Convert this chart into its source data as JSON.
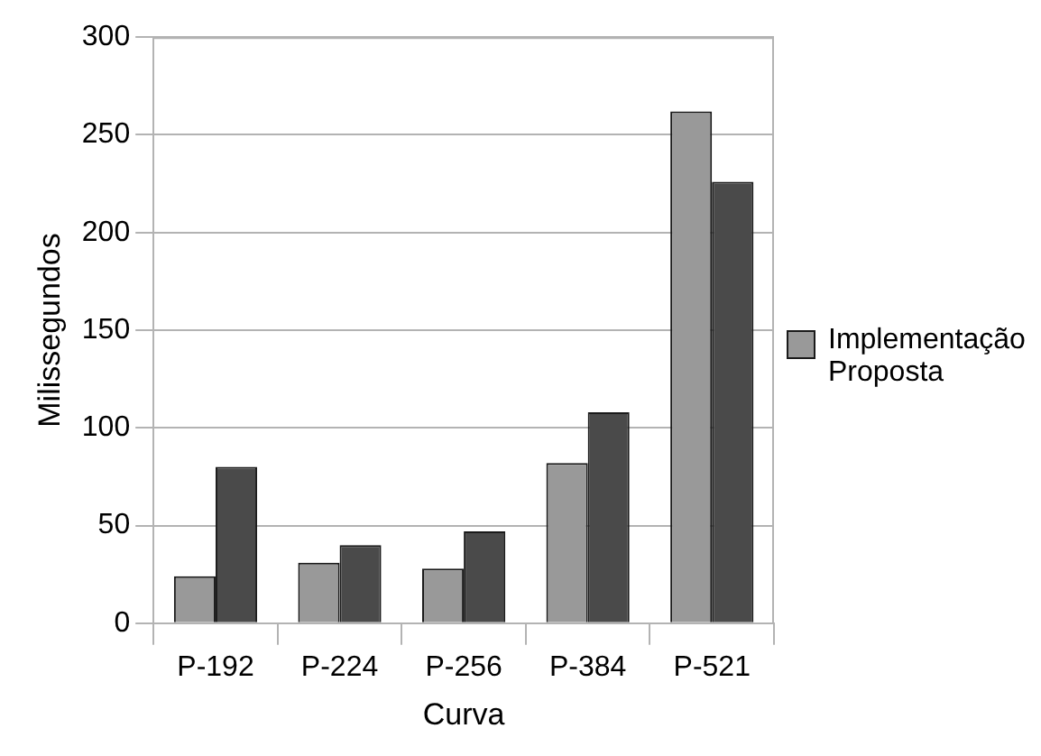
{
  "chart_data": {
    "type": "bar",
    "xlabel": "Curva",
    "ylabel": "Milissegundos",
    "categories": [
      "P-192",
      "P-224",
      "P-256",
      "P-384",
      "P-521"
    ],
    "series": [
      {
        "name": "Implementação Proposta",
        "color": "#999999",
        "values": [
          24,
          31,
          28,
          82,
          262
        ]
      },
      {
        "color": "#4a4a4a",
        "values": [
          80,
          40,
          47,
          108,
          226
        ]
      }
    ],
    "ylim": [
      0,
      300
    ],
    "yticks": [
      0,
      50,
      100,
      150,
      200,
      250,
      300
    ],
    "grid": "y",
    "legend": "right"
  }
}
